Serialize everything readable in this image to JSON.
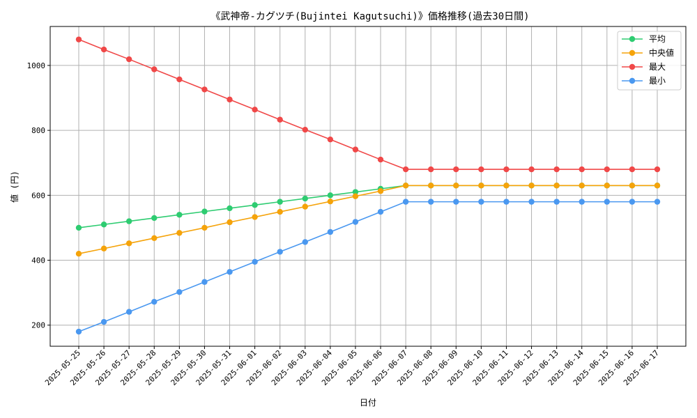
{
  "chart_data": {
    "type": "line",
    "title": "《武神帝-カグツチ(Bujintei Kagutsuchi)》価格推移(過去30日間)",
    "xlabel": "日付",
    "ylabel": "値 (円)",
    "ylim": [
      135,
      1120
    ],
    "yticks": [
      200,
      400,
      600,
      800,
      1000
    ],
    "grid": true,
    "legend_position": "top-right",
    "categories": [
      "2025-05-25",
      "2025-05-26",
      "2025-05-27",
      "2025-05-28",
      "2025-05-29",
      "2025-05-30",
      "2025-05-31",
      "2025-06-01",
      "2025-06-02",
      "2025-06-03",
      "2025-06-04",
      "2025-06-05",
      "2025-06-06",
      "2025-06-07",
      "2025-06-08",
      "2025-06-09",
      "2025-06-10",
      "2025-06-11",
      "2025-06-12",
      "2025-06-13",
      "2025-06-14",
      "2025-06-15",
      "2025-06-16",
      "2025-06-17"
    ],
    "series": [
      {
        "name": "平均",
        "color": "#2ecc71",
        "values": [
          500,
          510,
          520,
          530,
          540,
          550,
          560,
          570,
          580,
          590,
          600,
          610,
          620,
          630,
          630,
          630,
          630,
          630,
          630,
          630,
          630,
          630,
          630,
          630
        ]
      },
      {
        "name": " 中央値",
        "color": "#f5a30a",
        "values": [
          420,
          436,
          452,
          468,
          484,
          500,
          517,
          533,
          549,
          565,
          581,
          597,
          613,
          630,
          630,
          630,
          630,
          630,
          630,
          630,
          630,
          630,
          630,
          630
        ]
      },
      {
        "name": "最大",
        "color": "#f04848",
        "values": [
          1080,
          1049,
          1019,
          988,
          957,
          926,
          895,
          864,
          833,
          802,
          772,
          741,
          710,
          680,
          680,
          680,
          680,
          680,
          680,
          680,
          680,
          680,
          680,
          680
        ]
      },
      {
        "name": "最小",
        "color": "#4a98f0",
        "values": [
          180,
          210,
          241,
          272,
          302,
          333,
          364,
          395,
          426,
          456,
          487,
          518,
          549,
          580,
          580,
          580,
          580,
          580,
          580,
          580,
          580,
          580,
          580,
          580
        ]
      }
    ]
  }
}
